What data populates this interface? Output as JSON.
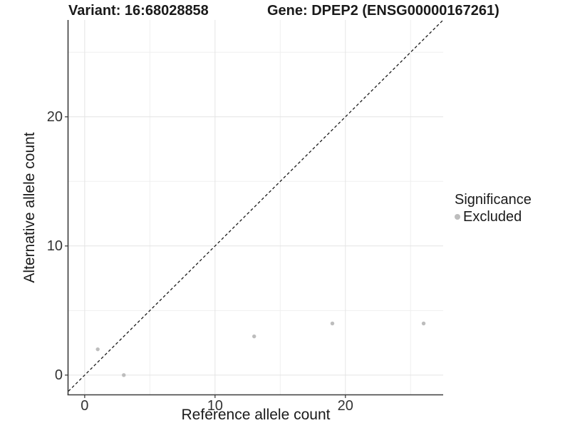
{
  "figure": {
    "title_left": "Variant: 16:68028858",
    "title_right": "Gene: DPEP2 (ENSG00000167261)"
  },
  "legend": {
    "title": "Significance",
    "items": [
      {
        "label": "Excluded",
        "marker": "circle",
        "color": "#bdbdbd"
      }
    ]
  },
  "colors": {
    "point": "#bdbdbd",
    "grid_major": "#e4e4e4",
    "grid_minor": "#efefef",
    "axis_line": "#3c3c3c",
    "tick_mark": "#333333",
    "identity_line": "#1a1a1a",
    "text": "#1a1a1a"
  },
  "chart_data": {
    "type": "scatter",
    "title": "Variant: 16:68028858 — Gene: DPEP2 (ENSG00000167261)",
    "xlabel": "Reference allele count",
    "ylabel": "Alternative allele count",
    "xlim": [
      -1.25,
      27.5
    ],
    "ylim": [
      -1.5,
      27.5
    ],
    "x_ticks": [
      0,
      10,
      20
    ],
    "x_tick_labels": [
      "0",
      "10",
      "20"
    ],
    "x_grid_minor": [
      5,
      15,
      25
    ],
    "y_ticks": [
      0,
      10,
      20
    ],
    "y_tick_labels": [
      "0",
      "10",
      "20"
    ],
    "y_grid_minor": [
      5,
      15,
      25
    ],
    "grid": true,
    "legend_position": "right",
    "series": [
      {
        "name": "Excluded",
        "color": "#bdbdbd",
        "points": [
          {
            "x": 1,
            "y": 2
          },
          {
            "x": 3,
            "y": 0
          },
          {
            "x": 13,
            "y": 3
          },
          {
            "x": 19,
            "y": 4
          },
          {
            "x": 26,
            "y": 4
          }
        ]
      }
    ],
    "reference_line": {
      "type": "identity",
      "equation": "y = x",
      "style": "dashed"
    }
  }
}
